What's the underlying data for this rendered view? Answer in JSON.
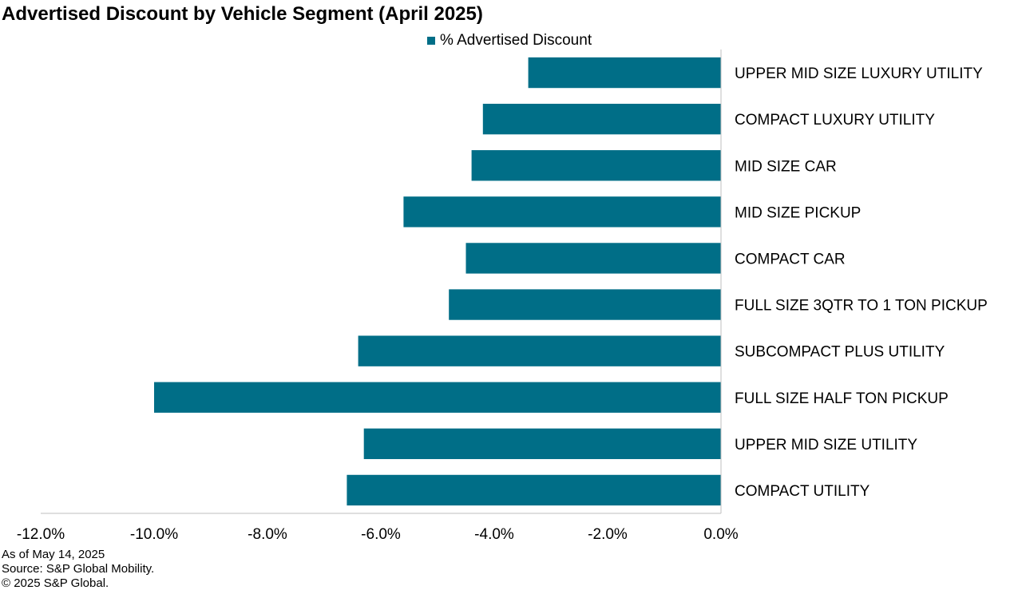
{
  "chart_data": {
    "type": "bar",
    "orientation": "horizontal",
    "title": "Advertised Discount by Vehicle Segment (April 2025)",
    "categories": [
      "UPPER MID SIZE LUXURY UTILITY",
      "COMPACT LUXURY UTILITY",
      "MID SIZE CAR",
      "MID SIZE PICKUP",
      "COMPACT CAR",
      "FULL SIZE 3QTR TO 1 TON PICKUP",
      "SUBCOMPACT PLUS UTILITY",
      "FULL SIZE HALF TON PICKUP",
      "UPPER MID SIZE UTILITY",
      "COMPACT UTILITY"
    ],
    "series": [
      {
        "name": "% Advertised Discount",
        "color": "#006e87",
        "values": [
          -3.4,
          -4.2,
          -4.4,
          -5.6,
          -4.5,
          -4.8,
          -6.4,
          -10.0,
          -6.3,
          -6.6
        ]
      }
    ],
    "xlim": [
      -12.0,
      0.0
    ],
    "xticks": [
      -12.0,
      -10.0,
      -8.0,
      -6.0,
      -4.0,
      -2.0,
      0.0
    ],
    "xtick_labels": [
      "-12.0%",
      "-10.0%",
      "-8.0%",
      "-6.0%",
      "-4.0%",
      "-2.0%",
      "0.0%"
    ],
    "xlabel": "",
    "ylabel": "",
    "grid": false,
    "legend_position": "top-center"
  },
  "footnotes": {
    "as_of": "As of May 14, 2025",
    "source": "Source: S&P Global Mobility.",
    "copyright": "© 2025 S&P Global."
  }
}
